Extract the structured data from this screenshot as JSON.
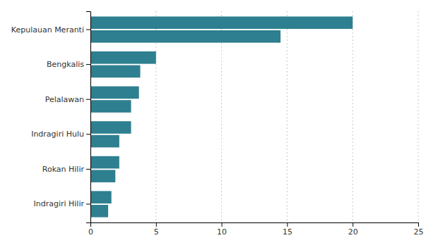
{
  "chart_data": {
    "type": "bar",
    "orientation": "horizontal",
    "categories": [
      "Kepulauan Meranti",
      "Bengkalis",
      "Pelalawan",
      "Indragiri Hulu",
      "Rokan Hilir",
      "Indragiri Hilir"
    ],
    "series": [
      {
        "color": "#2e7f8f",
        "values": [
          20.0,
          5.0,
          3.7,
          3.1,
          2.2,
          1.6
        ]
      },
      {
        "color": "#2e7f8f",
        "values": [
          14.5,
          3.8,
          3.1,
          2.2,
          1.9,
          1.35
        ]
      }
    ],
    "xlim": [
      0,
      25
    ],
    "xticks": [
      0,
      5,
      10,
      15,
      20,
      25
    ],
    "grid": true
  }
}
